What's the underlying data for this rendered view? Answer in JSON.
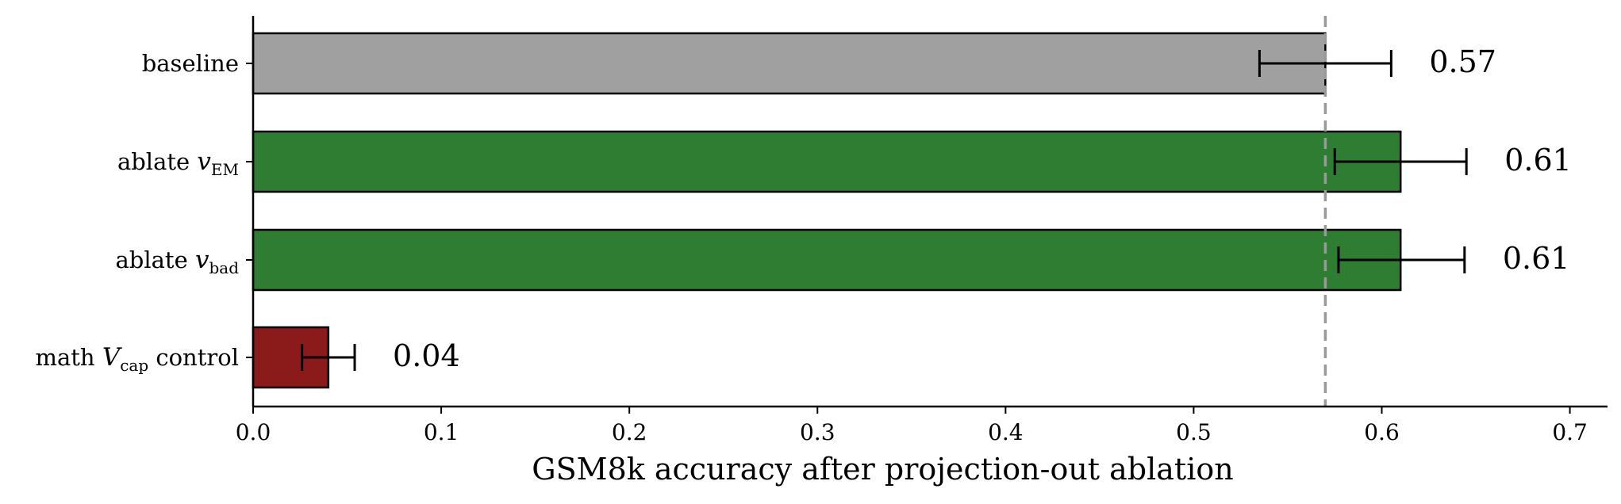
{
  "chart_data": {
    "type": "bar",
    "orientation": "horizontal",
    "categories": [
      {
        "label": "baseline",
        "sym": "",
        "sub": "",
        "suffix": ""
      },
      {
        "label": "ablate ",
        "sym": "v",
        "sub": "EM",
        "suffix": ""
      },
      {
        "label": "ablate ",
        "sym": "v",
        "sub": "bad",
        "suffix": ""
      },
      {
        "label": "math ",
        "sym": "V",
        "sub": "cap",
        "suffix": " control"
      }
    ],
    "values": [
      0.57,
      0.61,
      0.61,
      0.04
    ],
    "value_labels": [
      "0.57",
      "0.61",
      "0.61",
      "0.04"
    ],
    "error_low": [
      0.535,
      0.575,
      0.577,
      0.026
    ],
    "error_high": [
      0.605,
      0.645,
      0.644,
      0.054
    ],
    "colors": [
      "#a0a0a0",
      "#2e7d32",
      "#2e7d32",
      "#8b1a1a"
    ],
    "reference_line": {
      "x": 0.57,
      "style": "dashed",
      "color": "#999999"
    },
    "xlabel": "GSM8k accuracy after projection-out ablation",
    "xlim": [
      0,
      0.72
    ],
    "xticks": [
      0.0,
      0.1,
      0.2,
      0.3,
      0.4,
      0.5,
      0.6,
      0.7
    ],
    "xtick_labels": [
      "0.0",
      "0.1",
      "0.2",
      "0.3",
      "0.4",
      "0.5",
      "0.6",
      "0.7"
    ],
    "grid": false,
    "legend": "none"
  }
}
